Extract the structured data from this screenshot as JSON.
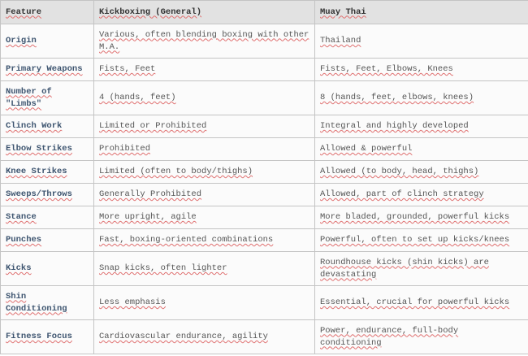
{
  "headers": [
    "Feature",
    "Kickboxing (General)",
    "Muay Thai"
  ],
  "rows": [
    {
      "feature": "Origin",
      "kickboxing": "Various, often blending boxing with other M.A.",
      "muay_thai": "Thailand"
    },
    {
      "feature": "Primary Weapons",
      "kickboxing": "Fists, Feet",
      "muay_thai": "Fists, Feet, Elbows, Knees"
    },
    {
      "feature": "Number of \"Limbs\"",
      "kickboxing": "4 (hands, feet)",
      "muay_thai": "8 (hands, feet, elbows, knees)"
    },
    {
      "feature": "Clinch Work",
      "kickboxing": "Limited or Prohibited",
      "muay_thai": "Integral and highly developed"
    },
    {
      "feature": "Elbow Strikes",
      "kickboxing": "Prohibited",
      "muay_thai": "Allowed & powerful"
    },
    {
      "feature": "Knee Strikes",
      "kickboxing": "Limited (often to body/thighs)",
      "muay_thai": "Allowed (to body, head, thighs)"
    },
    {
      "feature": "Sweeps/Throws",
      "kickboxing": "Generally Prohibited",
      "muay_thai": "Allowed, part of clinch strategy"
    },
    {
      "feature": "Stance",
      "kickboxing": "More upright, agile",
      "muay_thai": "More bladed, grounded, powerful kicks"
    },
    {
      "feature": "Punches",
      "kickboxing": "Fast, boxing-oriented combinations",
      "muay_thai": "Powerful, often to set up kicks/knees"
    },
    {
      "feature": "Kicks",
      "kickboxing": "Snap kicks, often lighter",
      "muay_thai": "Roundhouse kicks (shin kicks) are devastating"
    },
    {
      "feature": "Shin Conditioning",
      "kickboxing": "Less emphasis",
      "muay_thai": "Essential, crucial for powerful kicks"
    },
    {
      "feature": "Fitness Focus",
      "kickboxing": "Cardiovascular endurance, agility",
      "muay_thai": "Power, endurance, full-body conditioning"
    }
  ]
}
